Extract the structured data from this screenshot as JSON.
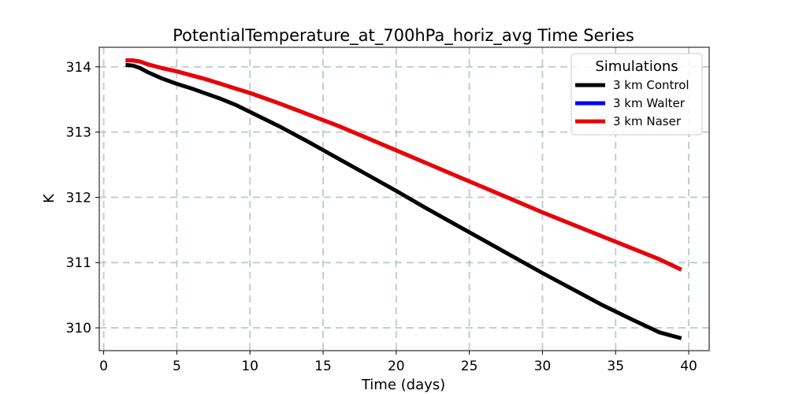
{
  "chart_data": {
    "type": "line",
    "title": "PotentialTemperature_at_700hPa_horiz_avg Time Series",
    "xlabel": "Time (days)",
    "ylabel": "K",
    "xlim": [
      -0.3,
      41.4
    ],
    "ylim": [
      309.65,
      314.3
    ],
    "xticks": [
      0,
      5,
      10,
      15,
      20,
      25,
      30,
      35,
      40
    ],
    "yticks": [
      310,
      311,
      312,
      313,
      314
    ],
    "grid": true,
    "legend": {
      "title": "Simulations",
      "position": "top-right"
    },
    "series": [
      {
        "name": "3 km Control",
        "color": "#000000",
        "x": [
          1.5,
          2.0,
          2.5,
          3.0,
          4.0,
          5.0,
          6.0,
          7.0,
          8.0,
          9.0,
          10.0,
          12.0,
          14.0,
          16.0,
          18.0,
          20.0,
          22.0,
          24.0,
          26.0,
          28.0,
          30.0,
          32.0,
          34.0,
          36.0,
          38.0,
          39.5
        ],
        "y": [
          314.03,
          314.02,
          313.98,
          313.92,
          313.82,
          313.74,
          313.67,
          313.59,
          313.51,
          313.42,
          313.31,
          313.09,
          312.85,
          312.6,
          312.35,
          312.1,
          311.84,
          311.59,
          311.34,
          311.09,
          310.84,
          310.6,
          310.36,
          310.14,
          309.93,
          309.84
        ]
      },
      {
        "name": "3 km Walter",
        "color": "#0000ff",
        "x": [
          1.5,
          2.0,
          2.5,
          3.0,
          4.0,
          5.0,
          6.0,
          7.0,
          8.0,
          9.0,
          10.0,
          12.0,
          14.0,
          16.0,
          18.0,
          20.0,
          22.0,
          24.0,
          26.0,
          28.0,
          30.0,
          32.0,
          34.0,
          36.0,
          38.0,
          39.5
        ],
        "y": [
          314.1,
          314.1,
          314.08,
          314.04,
          313.98,
          313.93,
          313.87,
          313.81,
          313.74,
          313.67,
          313.6,
          313.44,
          313.27,
          313.1,
          312.91,
          312.72,
          312.53,
          312.34,
          312.15,
          311.96,
          311.77,
          311.59,
          311.41,
          311.23,
          311.05,
          310.89
        ]
      },
      {
        "name": "3 km Naser",
        "color": "#ee0000",
        "x": [
          1.5,
          2.0,
          2.5,
          3.0,
          4.0,
          5.0,
          6.0,
          7.0,
          8.0,
          9.0,
          10.0,
          12.0,
          14.0,
          16.0,
          18.0,
          20.0,
          22.0,
          24.0,
          26.0,
          28.0,
          30.0,
          32.0,
          34.0,
          36.0,
          38.0,
          39.5
        ],
        "y": [
          314.1,
          314.1,
          314.08,
          314.04,
          313.98,
          313.93,
          313.87,
          313.81,
          313.74,
          313.67,
          313.6,
          313.44,
          313.27,
          313.1,
          312.91,
          312.72,
          312.53,
          312.34,
          312.15,
          311.96,
          311.77,
          311.59,
          311.41,
          311.23,
          311.05,
          310.89
        ]
      }
    ]
  }
}
